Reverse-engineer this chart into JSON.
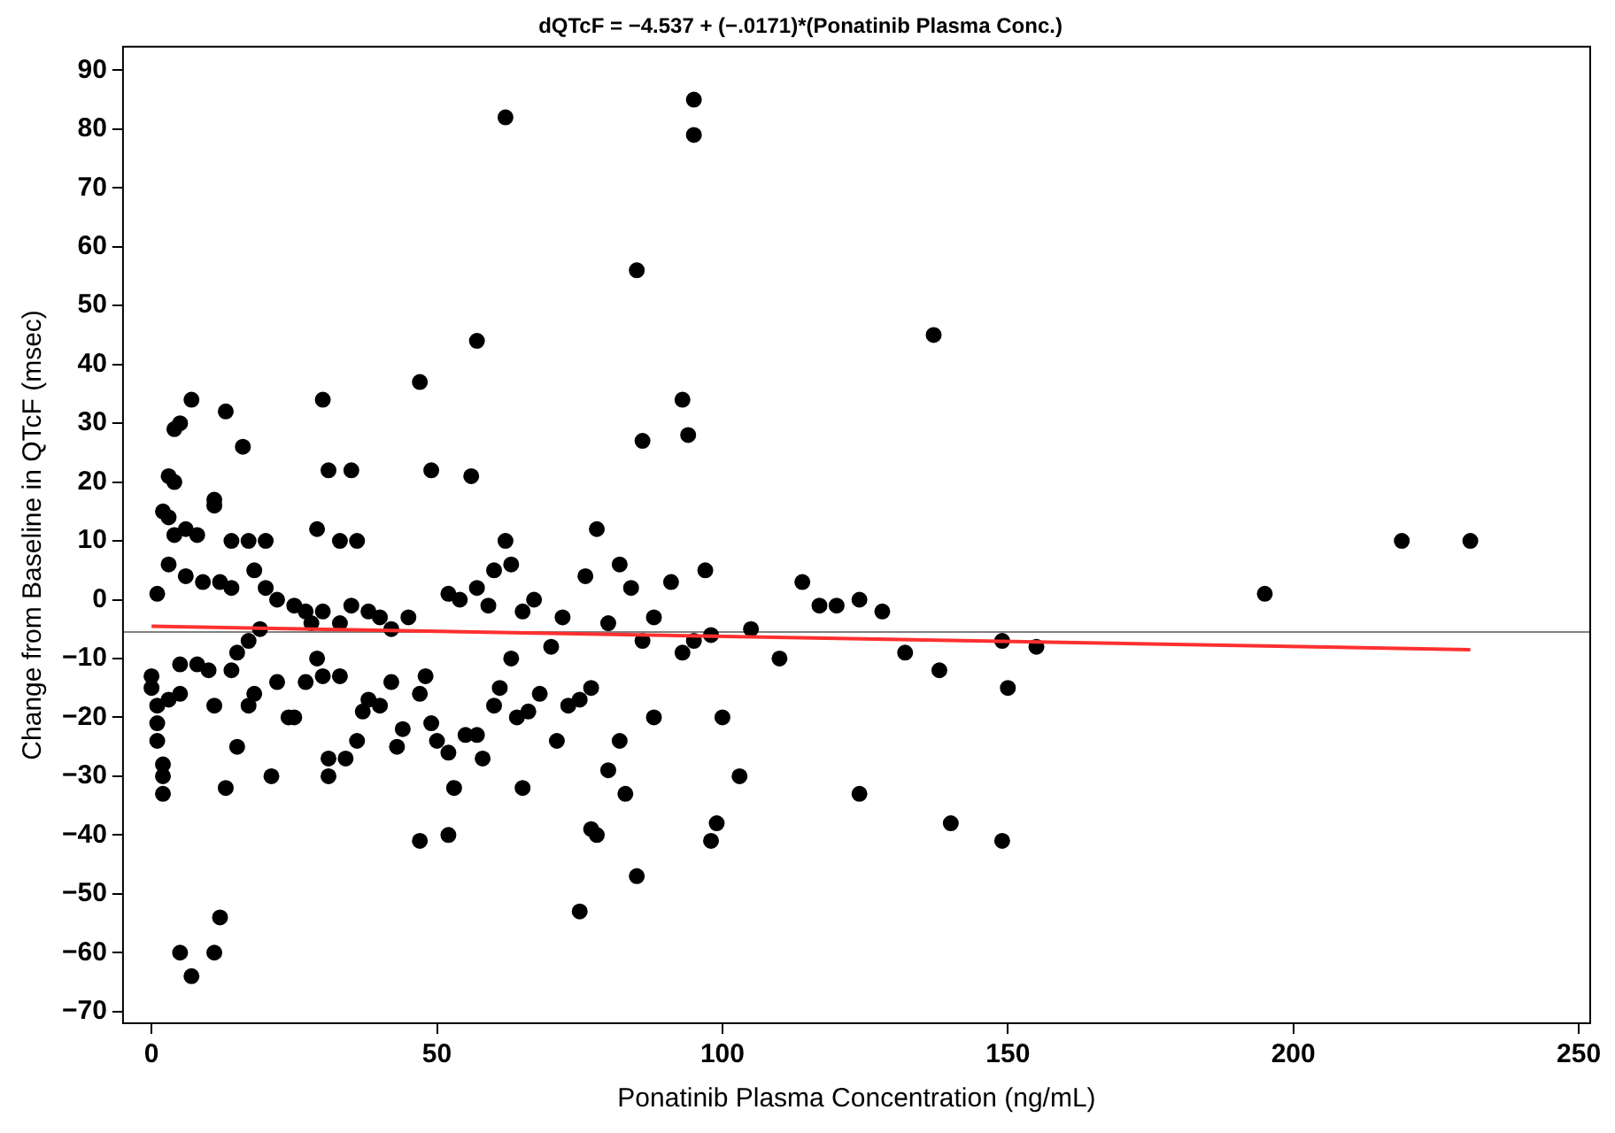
{
  "chart_data": {
    "type": "scatter",
    "title": "dQTcF = −4.537 + (−.0171)*(Ponatinib Plasma Conc.)",
    "xlabel": "Ponatinib Plasma Concentration (ng/mL)",
    "ylabel": "Change from Baseline in QTcF (msec)",
    "xlim": [
      -5,
      252
    ],
    "xticks": [
      0,
      50,
      100,
      150,
      200,
      250
    ],
    "ylim": [
      -72,
      94
    ],
    "yticks": [
      -70,
      -60,
      -50,
      -40,
      -30,
      -20,
      -10,
      0,
      10,
      20,
      30,
      40,
      50,
      60,
      70,
      80,
      90
    ],
    "grid": false,
    "legend": false,
    "marker": "circle",
    "ref_lines": [
      {
        "axis": "y",
        "value": -5.5,
        "color": "#808080"
      }
    ],
    "series": [
      {
        "color": "#000000",
        "x": [
          62,
          95,
          95,
          85,
          57,
          137,
          47,
          93,
          94,
          86,
          30,
          7,
          13,
          16,
          4,
          5,
          3,
          4,
          31,
          35,
          56,
          49,
          62,
          2,
          3,
          6,
          11,
          11,
          14,
          17,
          20,
          8,
          4,
          1,
          3,
          6,
          9,
          12,
          14,
          18,
          20,
          22,
          25,
          27,
          29,
          33,
          36,
          28,
          30,
          33,
          35,
          38,
          40,
          45,
          42,
          52,
          54,
          57,
          59,
          60,
          63,
          65,
          67,
          72,
          76,
          78,
          80,
          82,
          84,
          86,
          88,
          91,
          95,
          97,
          98,
          105,
          110,
          114,
          117,
          120,
          124,
          128,
          132,
          138,
          149,
          150,
          155,
          195,
          219,
          231,
          0,
          0,
          1,
          1,
          1,
          2,
          2,
          2,
          3,
          5,
          5,
          8,
          10,
          11,
          13,
          14,
          15,
          17,
          18,
          15,
          17,
          19,
          21,
          22,
          24,
          25,
          27,
          29,
          30,
          31,
          31,
          33,
          34,
          36,
          37,
          38,
          40,
          42,
          43,
          44,
          47,
          48,
          49,
          50,
          52,
          53,
          55,
          57,
          58,
          60,
          61,
          63,
          64,
          66,
          68,
          70,
          71,
          73,
          75,
          77,
          77,
          78,
          80,
          82,
          83,
          85,
          75,
          47,
          52,
          65,
          88,
          93,
          98,
          99,
          100,
          103,
          124,
          140,
          149,
          5,
          7,
          11,
          12
        ],
        "values": [
          82,
          85,
          79,
          56,
          44,
          45,
          37,
          34,
          28,
          27,
          34,
          34,
          32,
          26,
          29,
          30,
          21,
          20,
          22,
          22,
          21,
          22,
          10,
          15,
          14,
          12,
          17,
          16,
          10,
          10,
          10,
          11,
          11,
          1,
          6,
          4,
          3,
          3,
          2,
          5,
          2,
          0,
          -1,
          -2,
          12,
          10,
          10,
          -4,
          -2,
          -4,
          -1,
          -2,
          -3,
          -3,
          -5,
          1,
          0,
          2,
          -1,
          5,
          6,
          -2,
          0,
          -3,
          4,
          12,
          -4,
          6,
          2,
          -7,
          -3,
          3,
          -7,
          5,
          -6,
          -5,
          -10,
          3,
          -1,
          -1,
          0,
          -2,
          -9,
          -12,
          -7,
          -15,
          -8,
          1,
          10,
          10,
          -13,
          -15,
          -18,
          -21,
          -24,
          -28,
          -33,
          -30,
          -17,
          -16,
          -11,
          -11,
          -12,
          -18,
          -32,
          -12,
          -25,
          -18,
          -16,
          -9,
          -7,
          -5,
          -30,
          -14,
          -20,
          -20,
          -14,
          -10,
          -13,
          -27,
          -30,
          -13,
          -27,
          -24,
          -19,
          -17,
          -18,
          -14,
          -25,
          -22,
          -16,
          -13,
          -21,
          -24,
          -26,
          -32,
          -23,
          -23,
          -27,
          -18,
          -15,
          -10,
          -20,
          -19,
          -16,
          -8,
          -24,
          -18,
          -17,
          -15,
          -39,
          -40,
          -29,
          -24,
          -33,
          -47,
          -53,
          -41,
          -40,
          -32,
          -20,
          -9,
          -41,
          -38,
          -20,
          -30,
          -33,
          -38,
          -41,
          -60,
          -64,
          -60,
          -54
        ]
      },
      {
        "type": "line",
        "color": "#ff3030",
        "marker": "none",
        "x": [
          0,
          231
        ],
        "values": [
          -4.5,
          -8.5
        ]
      }
    ]
  }
}
